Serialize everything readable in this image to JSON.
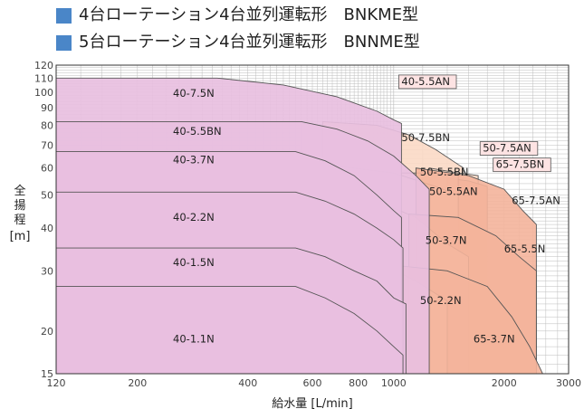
{
  "legend": {
    "items": [
      {
        "label": "4台ローテーション4台並列運転形　BNKME型",
        "color": "#4a86c8"
      },
      {
        "label": "5台ローテーション4台並列運転形　BNNME型",
        "color": "#4a86c8"
      }
    ]
  },
  "colors": {
    "bnk_fill": "#e8bfe0",
    "bnn_fill": "#fbd9c5",
    "bnn65_fill": "#f4b49b",
    "grid": "#bdbdbd",
    "outline": "#555555"
  },
  "chart_data": {
    "type": "area",
    "title": "",
    "xlabel": "給水量 [L/min]",
    "ylabel": "全揚程 [m]",
    "xscale": "log",
    "yscale": "log",
    "xlim": [
      120,
      3000
    ],
    "ylim": [
      15,
      120
    ],
    "xticks": [
      120,
      200,
      400,
      600,
      800,
      1000,
      2000,
      3000
    ],
    "yticks": [
      15,
      20,
      30,
      40,
      50,
      60,
      70,
      80,
      90,
      100,
      110,
      120
    ],
    "grid": true,
    "series": [
      {
        "name": "40-7.5N",
        "group": "BNKME",
        "x": [
          120,
          330,
          500,
          700,
          900,
          1000,
          1050
        ],
        "y": [
          110,
          110,
          105,
          97,
          88,
          83,
          81
        ],
        "label_at": [
          250,
          97
        ]
      },
      {
        "name": "40-5.5BN",
        "group": "BNKME",
        "x": [
          120,
          560,
          700,
          850,
          1000,
          1150,
          1250
        ],
        "y": [
          82,
          82,
          78,
          72,
          65,
          57,
          52
        ],
        "label_at": [
          250,
          75
        ]
      },
      {
        "name": "40-3.7N",
        "group": "BNKME",
        "x": [
          120,
          540,
          650,
          780,
          900,
          1000,
          1050
        ],
        "y": [
          67,
          67,
          63,
          57,
          50,
          45,
          43
        ],
        "label_at": [
          250,
          62
        ]
      },
      {
        "name": "40-2.2N",
        "group": "BNKME",
        "x": [
          120,
          540,
          650,
          780,
          900,
          1000,
          1060
        ],
        "y": [
          51,
          51,
          48,
          44,
          40,
          37,
          35
        ],
        "label_at": [
          250,
          42
        ]
      },
      {
        "name": "40-1.5N",
        "group": "BNKME",
        "x": [
          120,
          540,
          650,
          780,
          900,
          1000,
          1080
        ],
        "y": [
          35,
          35,
          33,
          30,
          28,
          25,
          24
        ],
        "label_at": [
          250,
          31
        ]
      },
      {
        "name": "40-1.1N",
        "group": "BNKME",
        "x": [
          120,
          540,
          650,
          780,
          900,
          1000,
          1060
        ],
        "y": [
          27,
          27,
          25,
          22.5,
          20,
          18,
          17
        ],
        "label_at": [
          250,
          18.5
        ]
      },
      {
        "name": "40-5.5AN",
        "group": "BNNME",
        "x": [
          560,
          700,
          850,
          1000,
          1150,
          1250
        ],
        "y": [
          82,
          78,
          72,
          65,
          57,
          52
        ],
        "label_at": [
          1050,
          105
        ]
      },
      {
        "name": "50-7.5BN",
        "group": "BNNME",
        "x": [
          640,
          900,
          1100,
          1300,
          1550
        ],
        "y": [
          82,
          80,
          75,
          68,
          60
        ],
        "label_at": [
          1050,
          72
        ]
      },
      {
        "name": "50-7.5AN",
        "group": "BNNME",
        "x": [
          1250,
          1500,
          1700
        ],
        "y": [
          60,
          58,
          57
        ],
        "label_at": [
          1750,
          67
        ]
      },
      {
        "name": "65-7.5BN",
        "group": "BNNME",
        "x": [
          1400,
          1600,
          1800
        ],
        "y": [
          56,
          55,
          53
        ],
        "label_at": [
          1900,
          60
        ]
      },
      {
        "name": "50-5.5BN",
        "group": "BNNME",
        "x": [
          1050,
          1300,
          1500
        ],
        "y": [
          58,
          58,
          57
        ],
        "label_at": [
          1180,
          57
        ]
      },
      {
        "name": "50-5.5AN",
        "group": "BNNME",
        "x": [
          600,
          1000,
          1300,
          1500
        ],
        "y": [
          62,
          58,
          53,
          50
        ],
        "label_at": [
          1250,
          50
        ]
      },
      {
        "name": "65-7.5AN",
        "group": "BNNME",
        "x": [
          1150,
          1600,
          2000,
          2250,
          2450
        ],
        "y": [
          60,
          57,
          52,
          45,
          41
        ],
        "label_at": [
          2100,
          47
        ]
      },
      {
        "name": "50-3.7N",
        "group": "BNNME",
        "x": [
          620,
          900,
          1150,
          1400,
          1600
        ],
        "y": [
          50,
          48,
          43,
          36,
          33
        ],
        "label_at": [
          1220,
          36
        ]
      },
      {
        "name": "65-5.5N",
        "group": "BNNME",
        "x": [
          1100,
          1500,
          1900,
          2200,
          2450
        ],
        "y": [
          44,
          43,
          38,
          33,
          30
        ],
        "label_at": [
          2000,
          34
        ]
      },
      {
        "name": "50-2.2N",
        "group": "BNNME",
        "x": [
          620,
          900,
          1150,
          1400
        ],
        "y": [
          33,
          32,
          28,
          24.5
        ],
        "label_at": [
          1180,
          24
        ]
      },
      {
        "name": "65-3.7N",
        "group": "BNNME",
        "x": [
          1050,
          1400,
          1800,
          2100,
          2350,
          2550
        ],
        "y": [
          31,
          30,
          27,
          22,
          18,
          15
        ],
        "label_at": [
          1650,
          18.5
        ]
      }
    ]
  }
}
